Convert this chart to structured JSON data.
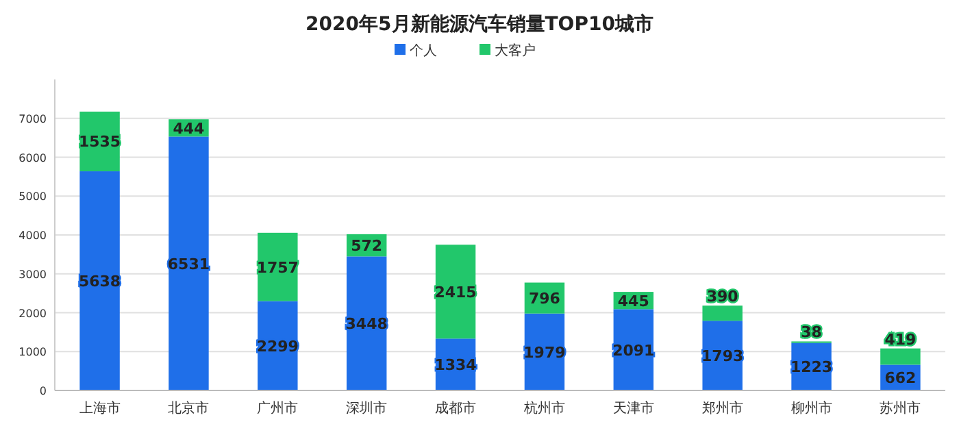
{
  "chart_data": {
    "type": "bar",
    "title": "2020年5月新能源汽车销量TOP10城市",
    "stacked": true,
    "categories": [
      "上海市",
      "北京市",
      "广州市",
      "深圳市",
      "成都市",
      "杭州市",
      "天津市",
      "郑州市",
      "柳州市",
      "苏州市"
    ],
    "series": [
      {
        "name": "个人",
        "color": "#1f6fe9",
        "values": [
          5638,
          6531,
          2299,
          3448,
          1334,
          1979,
          2091,
          1793,
          1223,
          662
        ]
      },
      {
        "name": "大客户",
        "color": "#22c76b",
        "values": [
          1535,
          444,
          1757,
          572,
          2415,
          796,
          445,
          390,
          38,
          419
        ]
      }
    ],
    "ylim": [
      0,
      8000
    ],
    "yticks": [
      0,
      1000,
      2000,
      3000,
      4000,
      5000,
      6000,
      7000
    ],
    "grid": "y",
    "legend": "top",
    "data_labels": true
  }
}
